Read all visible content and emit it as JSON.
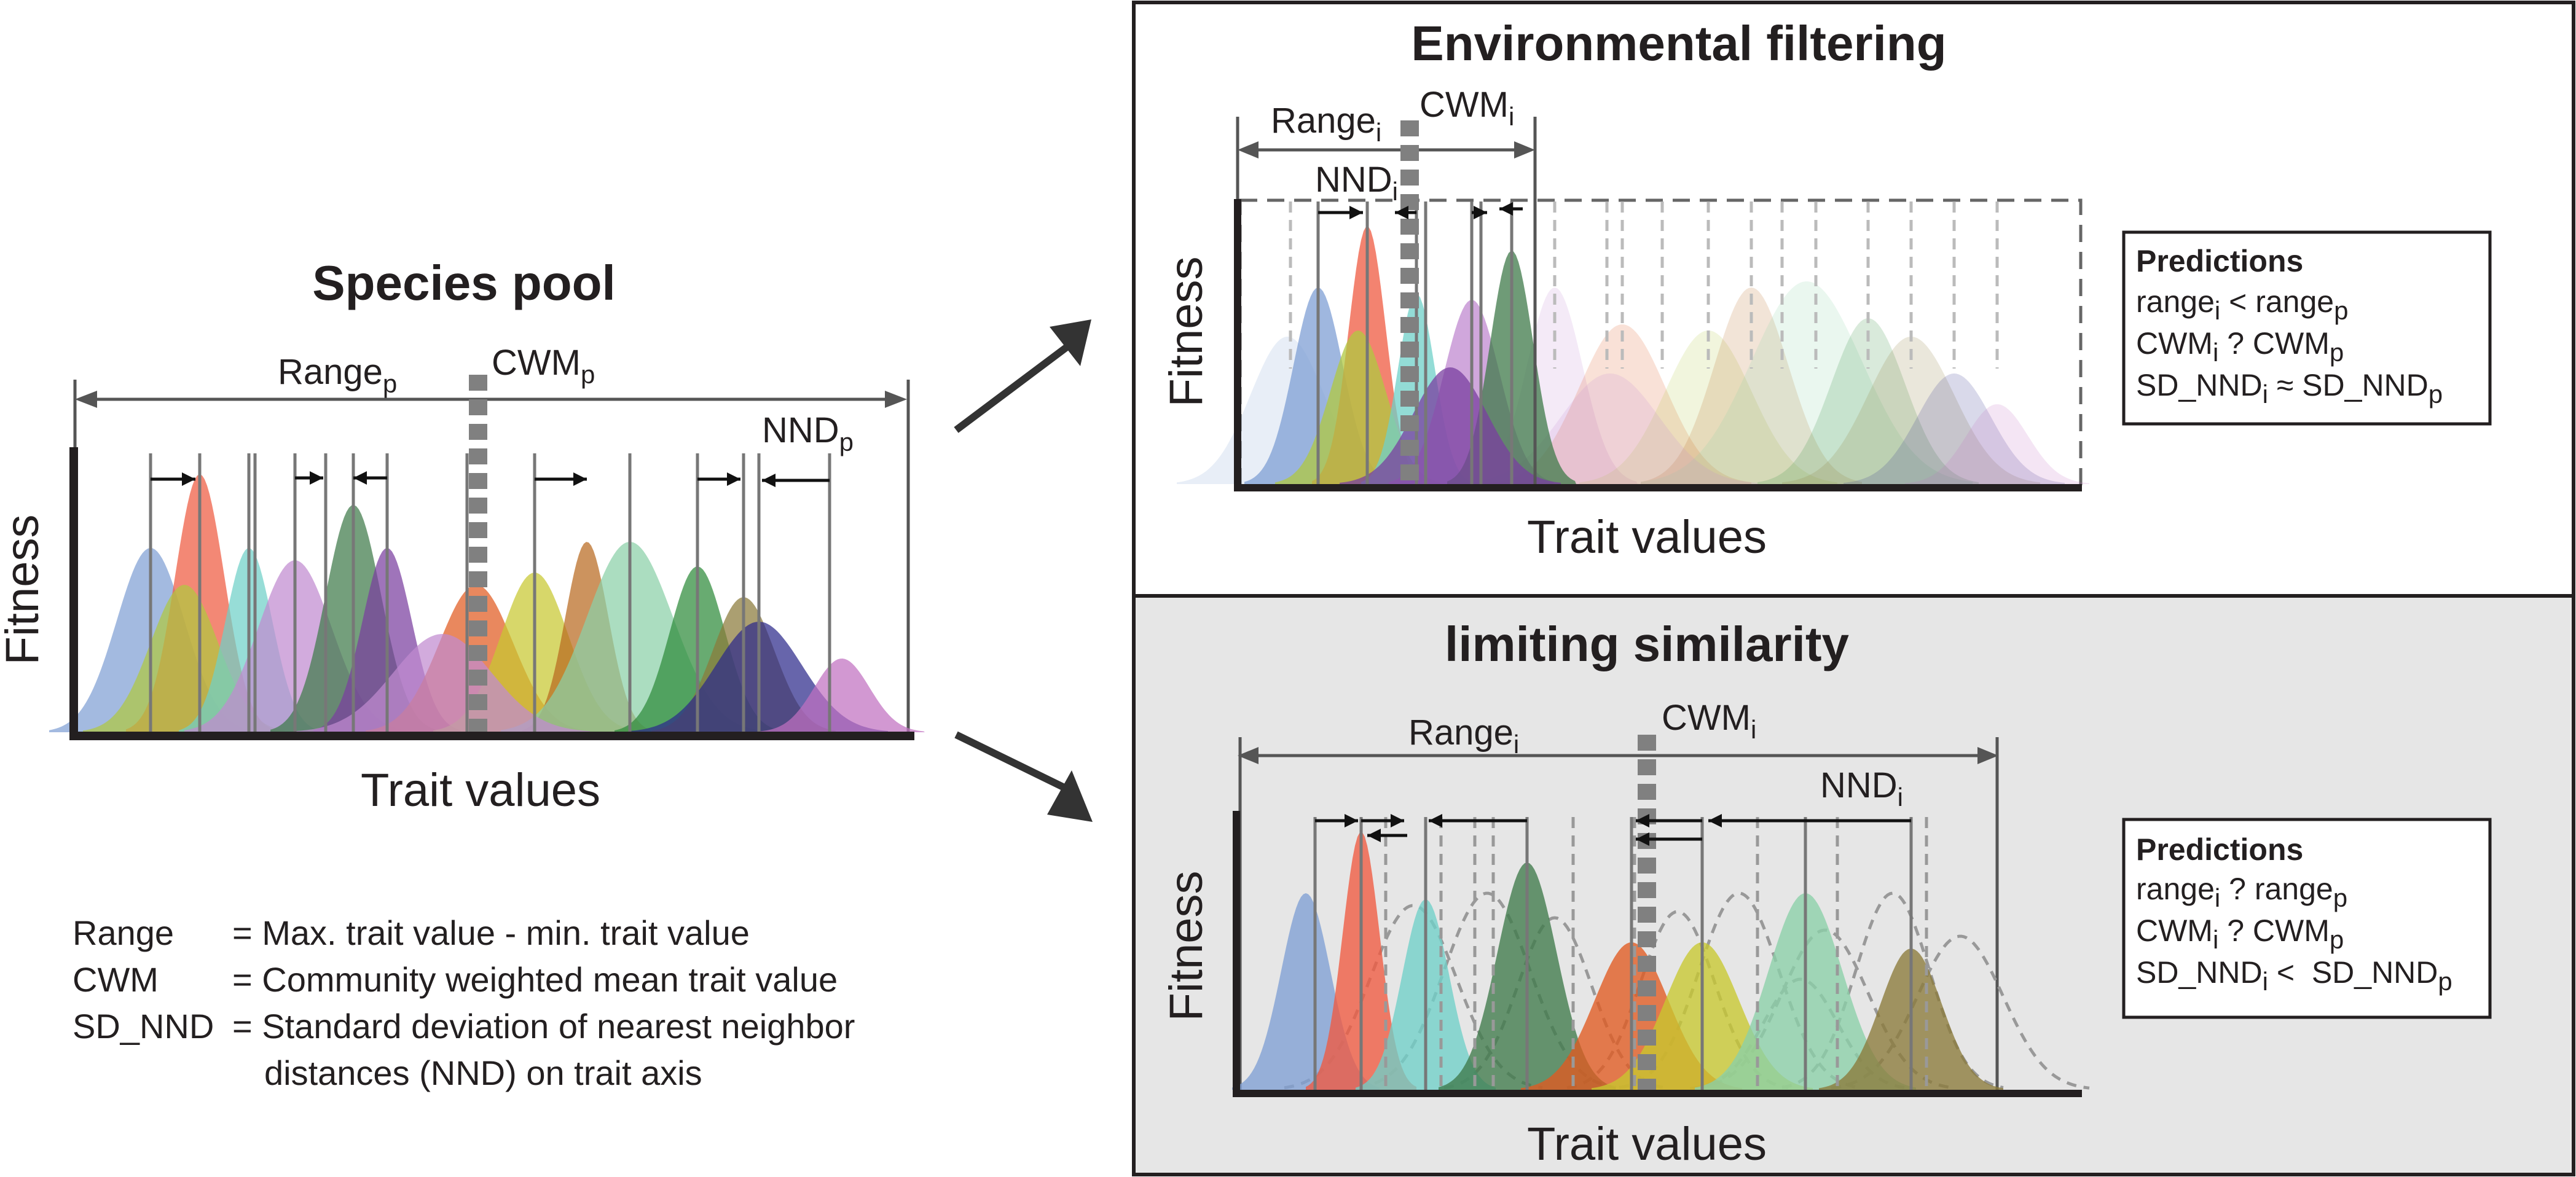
{
  "pool": {
    "title": "Species pool",
    "xlabel": "Trait values",
    "ylabel": "Fitness",
    "range": {
      "main": "Range",
      "sub": "p"
    },
    "cwm": {
      "main": "CWM",
      "sub": "p"
    },
    "nnd": {
      "main": "NND",
      "sub": "p"
    }
  },
  "env": {
    "title": "Environmental filtering",
    "xlabel": "Trait values",
    "ylabel": "Fitness",
    "range": {
      "main": "Range",
      "sub": "i"
    },
    "cwm": {
      "main": "CWM",
      "sub": "i"
    },
    "nnd": {
      "main": "NND",
      "sub": "i"
    },
    "predictions": {
      "heading": "Predictions",
      "lines": [
        {
          "a": "range",
          "as": "i",
          "op": " < ",
          "b": "range",
          "bs": "p"
        },
        {
          "a": "CWM",
          "as": "i",
          "op": " ? ",
          "b": "CWM",
          "bs": "p"
        },
        {
          "a": "SD_NND",
          "as": "i",
          "op": " ≈ ",
          "b": "SD_NND",
          "bs": "p"
        }
      ]
    }
  },
  "lim": {
    "title": "limiting similarity",
    "xlabel": "Trait values",
    "ylabel": "Fitness",
    "range": {
      "main": "Range",
      "sub": "i"
    },
    "cwm": {
      "main": "CWM",
      "sub": "i"
    },
    "nnd": {
      "main": "NND",
      "sub": "i"
    },
    "predictions": {
      "heading": "Predictions",
      "lines": [
        {
          "a": "range",
          "as": "i",
          "op": " ? ",
          "b": "range",
          "bs": "p"
        },
        {
          "a": "CWM",
          "as": "i",
          "op": " ? ",
          "b": "CWM",
          "bs": "p"
        },
        {
          "a": "SD_NND",
          "as": "i",
          "op": " <  ",
          "b": "SD_NND",
          "bs": "p"
        }
      ]
    }
  },
  "legend": [
    {
      "term": "Range",
      "def": "= Max. trait value - min. trait value"
    },
    {
      "term": "CWM",
      "def": "= Community weighted mean trait value"
    },
    {
      "term": "SD_NND",
      "def": "= Standard deviation of nearest neighbor"
    },
    {
      "term": "",
      "def": "distances (NND) on trait axis"
    }
  ],
  "colors": {
    "bg_lower_panel": "#e6e6e6",
    "frame": "#231f20",
    "cwm_marker": "#808080",
    "species": [
      "#7f9fd4",
      "#ef5a40",
      "#6fd0c8",
      "#c08ad0",
      "#3f7a4a",
      "#7a3fa0",
      "#e05a20",
      "#c8c830",
      "#b86a20",
      "#8ad0a8",
      "#2e8a3a",
      "#8a7a3a",
      "#2c2a8a",
      "#c070c0",
      "#b0c840"
    ]
  }
}
